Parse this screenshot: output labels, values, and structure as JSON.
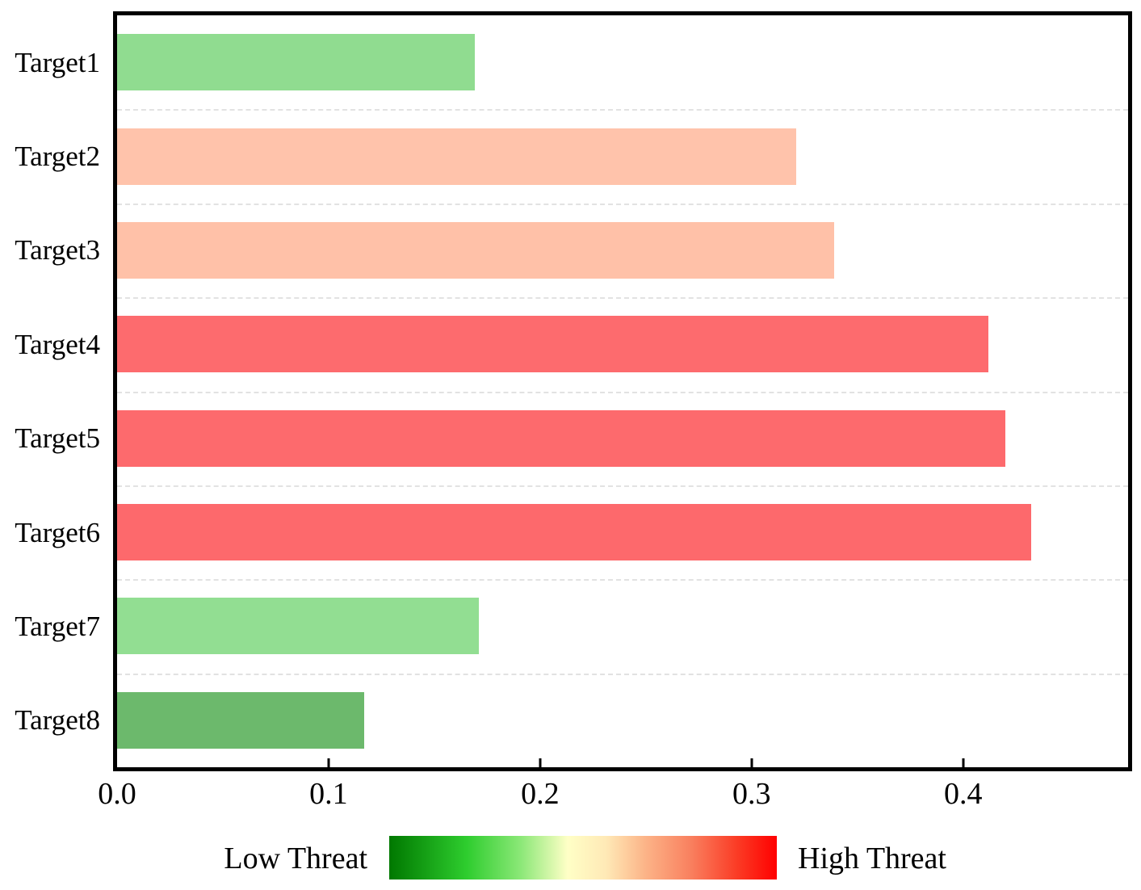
{
  "chart_data": {
    "type": "bar",
    "orientation": "horizontal",
    "title": "",
    "xlabel": "",
    "ylabel": "",
    "categories": [
      "Target1",
      "Target2",
      "Target3",
      "Target4",
      "Target5",
      "Target6",
      "Target7",
      "Target8"
    ],
    "values": [
      0.169,
      0.321,
      0.339,
      0.412,
      0.42,
      0.432,
      0.171,
      0.117
    ],
    "bar_colors": [
      "#90dc90",
      "#ffc3ab",
      "#ffc1a8",
      "#fd6b6e",
      "#fd6a6d",
      "#fd696c",
      "#92de92",
      "#6cb96c"
    ],
    "xlim": [
      0,
      0.478
    ],
    "xticks": [
      0.0,
      0.1,
      0.2,
      0.3,
      0.4
    ],
    "xtick_labels": [
      "0.0",
      "0.1",
      "0.2",
      "0.3",
      "0.4"
    ],
    "grid": "dashed horizontal separators between category rows",
    "legend_position": "bottom",
    "legend": {
      "type": "colorbar",
      "low_label": "Low Threat",
      "high_label": "High Threat",
      "gradient_stops": [
        [
          "#007800",
          0
        ],
        [
          "#2ecd2e",
          0.2
        ],
        [
          "#8ce878",
          0.34
        ],
        [
          "#ffffc6",
          0.46
        ],
        [
          "#ffe9b6",
          0.56
        ],
        [
          "#fcb488",
          0.66
        ],
        [
          "#f97f5e",
          0.78
        ],
        [
          "#fb3a24",
          0.9
        ],
        [
          "#ff0000",
          1
        ]
      ]
    }
  },
  "colors": {
    "spine": "#000000",
    "gridline": "#e2e2e2",
    "background": "#ffffff",
    "tick": "#000000"
  }
}
